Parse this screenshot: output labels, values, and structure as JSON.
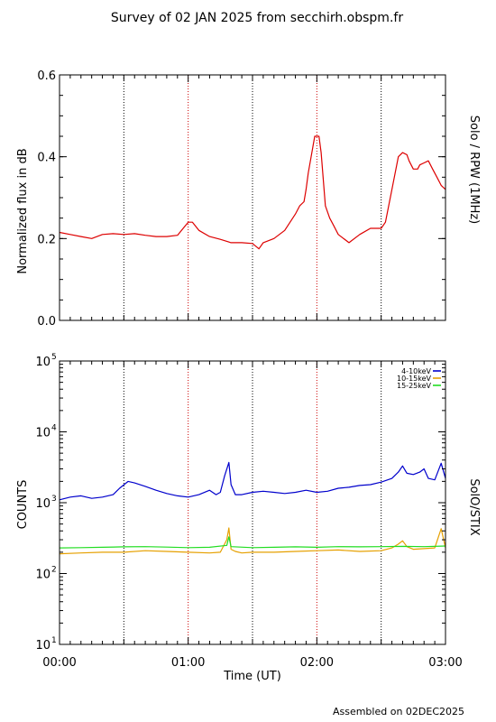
{
  "title": "Survey of 02 JAN 2025 from secchirh.obspm.fr",
  "footer": "Assembled on 02DEC2025",
  "x_axis": {
    "label": "Time (UT)",
    "range_minutes": [
      0,
      180
    ],
    "ticks": [
      {
        "minutes": 0,
        "label": "00:00"
      },
      {
        "minutes": 60,
        "label": "01:00"
      },
      {
        "minutes": 120,
        "label": "02:00"
      },
      {
        "minutes": 180,
        "label": "03:00"
      }
    ],
    "dotted_lines_minutes": [
      30,
      60,
      90,
      120,
      150
    ]
  },
  "chart_data": [
    {
      "type": "line",
      "ylabel": "Normalized flux in dB",
      "right_label": "Solo / RPW (1MHz)",
      "ylim": [
        0,
        0.6
      ],
      "yticks": [
        0.0,
        0.2,
        0.4,
        0.6
      ],
      "ytick_labels": [
        "0.0",
        "0.2",
        "0.4",
        "0.6"
      ],
      "series": [
        {
          "color": "#dd0000",
          "x": [
            0,
            5,
            10,
            15,
            20,
            25,
            30,
            35,
            40,
            45,
            50,
            55,
            60,
            62,
            65,
            70,
            75,
            80,
            85,
            90,
            93,
            95,
            100,
            105,
            110,
            112,
            114,
            115,
            116,
            118,
            119,
            120,
            121,
            122,
            124,
            126,
            128,
            130,
            135,
            140,
            145,
            150,
            152,
            155,
            158,
            160,
            162,
            163,
            165,
            167,
            168,
            170,
            172,
            174,
            176,
            178,
            180
          ],
          "y": [
            0.215,
            0.21,
            0.205,
            0.2,
            0.21,
            0.212,
            0.21,
            0.212,
            0.208,
            0.205,
            0.205,
            0.208,
            0.24,
            0.24,
            0.22,
            0.205,
            0.198,
            0.19,
            0.19,
            0.188,
            0.175,
            0.19,
            0.2,
            0.22,
            0.26,
            0.28,
            0.29,
            0.32,
            0.36,
            0.42,
            0.45,
            0.45,
            0.45,
            0.41,
            0.28,
            0.25,
            0.23,
            0.21,
            0.19,
            0.21,
            0.225,
            0.225,
            0.24,
            0.32,
            0.4,
            0.41,
            0.405,
            0.39,
            0.37,
            0.37,
            0.38,
            0.385,
            0.39,
            0.37,
            0.35,
            0.33,
            0.32
          ]
        }
      ]
    },
    {
      "type": "line",
      "ylabel": "COUNTS",
      "right_label": "SolO/STIX",
      "yscale": "log",
      "ylim": [
        10,
        100000
      ],
      "legend_position": "top-right",
      "yticks": [
        {
          "base": "10",
          "exp": "1"
        },
        {
          "base": "10",
          "exp": "2"
        },
        {
          "base": "10",
          "exp": "3"
        },
        {
          "base": "10",
          "exp": "4"
        },
        {
          "base": "10",
          "exp": "5"
        }
      ],
      "series": [
        {
          "name": "4-10keV",
          "color": "#0000cc",
          "x": [
            0,
            5,
            10,
            15,
            20,
            25,
            28,
            32,
            35,
            40,
            45,
            50,
            55,
            60,
            65,
            70,
            73,
            75,
            77,
            79,
            80,
            82,
            85,
            90,
            95,
            100,
            105,
            110,
            115,
            120,
            125,
            130,
            135,
            140,
            145,
            150,
            155,
            158,
            160,
            162,
            165,
            168,
            170,
            172,
            175,
            178,
            180
          ],
          "y": [
            1100,
            1200,
            1250,
            1150,
            1200,
            1300,
            1600,
            2000,
            1900,
            1700,
            1500,
            1350,
            1250,
            1200,
            1300,
            1500,
            1300,
            1400,
            2400,
            3700,
            1800,
            1300,
            1300,
            1400,
            1450,
            1400,
            1350,
            1400,
            1500,
            1400,
            1450,
            1600,
            1650,
            1750,
            1800,
            1950,
            2200,
            2700,
            3300,
            2600,
            2500,
            2700,
            3000,
            2200,
            2100,
            3600,
            2200
          ]
        },
        {
          "name": "10-15keV",
          "color": "#e6a000",
          "x": [
            0,
            10,
            20,
            30,
            40,
            50,
            60,
            70,
            75,
            78,
            79,
            80,
            82,
            85,
            90,
            100,
            110,
            120,
            130,
            140,
            150,
            155,
            158,
            160,
            162,
            165,
            170,
            175,
            178,
            180
          ],
          "y": [
            190,
            195,
            200,
            200,
            210,
            205,
            200,
            195,
            200,
            300,
            440,
            220,
            205,
            195,
            200,
            200,
            205,
            210,
            215,
            205,
            210,
            230,
            260,
            290,
            240,
            220,
            225,
            230,
            430,
            230
          ]
        },
        {
          "name": "15-25keV",
          "color": "#22dd22",
          "x": [
            0,
            10,
            20,
            30,
            40,
            50,
            60,
            70,
            78,
            79,
            80,
            90,
            100,
            110,
            120,
            130,
            140,
            150,
            160,
            170,
            180
          ],
          "y": [
            230,
            232,
            235,
            238,
            240,
            236,
            232,
            235,
            250,
            330,
            240,
            232,
            235,
            238,
            235,
            240,
            238,
            240,
            242,
            240,
            245
          ]
        }
      ]
    }
  ]
}
